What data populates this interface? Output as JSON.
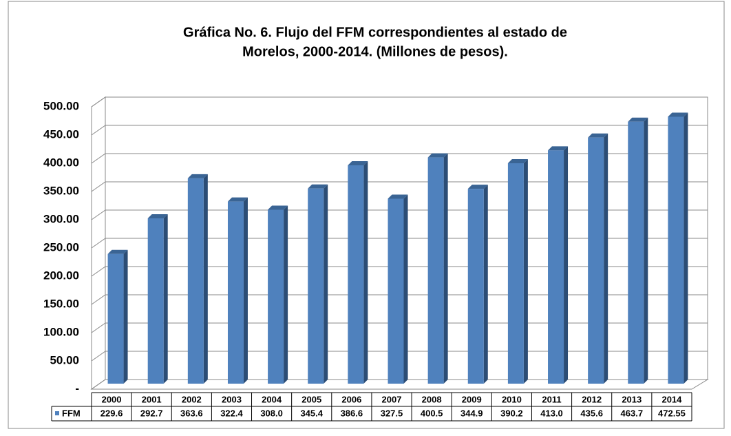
{
  "chart_data": {
    "type": "bar",
    "title": "Gráfica No. 6. Flujo del FFM correspondientes al estado de",
    "subtitle": "Morelos, 2000-2014. (Millones de pesos).",
    "categories": [
      "2000",
      "2001",
      "2002",
      "2003",
      "2004",
      "2005",
      "2006",
      "2007",
      "2008",
      "2009",
      "2010",
      "2011",
      "2012",
      "2013",
      "2014"
    ],
    "series": [
      {
        "name": "FFM",
        "color": "#4f81bd",
        "values": [
          229.6,
          292.7,
          363.6,
          322.4,
          308,
          345.4,
          386.6,
          327.5,
          400.5,
          344.9,
          390.2,
          413,
          435.6,
          463.7,
          472.55
        ],
        "value_labels": [
          "229.6",
          "292.7",
          "363.6",
          "322.4",
          "308.0",
          "345.4",
          "386.6",
          "327.5",
          "400.5",
          "344.9",
          "390.2",
          "413.0",
          "435.6",
          "463.7",
          "472.55"
        ]
      }
    ],
    "ylim": [
      0,
      500
    ],
    "yticks": [
      {
        "value": 0,
        "label": "-"
      },
      {
        "value": 50,
        "label": "50.00"
      },
      {
        "value": 100,
        "label": "100.00"
      },
      {
        "value": 150,
        "label": "150.00"
      },
      {
        "value": 200,
        "label": "200.00"
      },
      {
        "value": 250,
        "label": "250.00"
      },
      {
        "value": 300,
        "label": "300.00"
      },
      {
        "value": 350,
        "label": "350.00"
      },
      {
        "value": 400,
        "label": "400.00"
      },
      {
        "value": 450,
        "label": "450.00"
      },
      {
        "value": 500,
        "label": "500.00"
      }
    ],
    "grid": true
  }
}
